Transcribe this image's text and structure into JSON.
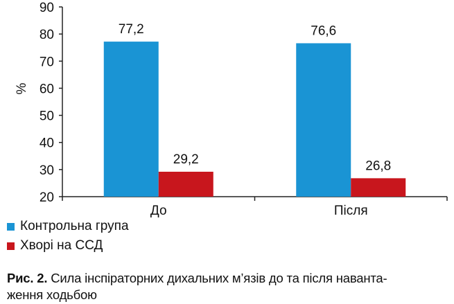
{
  "chart_data": {
    "type": "bar",
    "categories": [
      "До",
      "Після"
    ],
    "series": [
      {
        "name": "Контрольна група",
        "values": [
          77.2,
          76.6
        ],
        "labels": [
          "77,2",
          "76,6"
        ],
        "color": "#1a94d4"
      },
      {
        "name": "Хворі на ССД",
        "values": [
          29.2,
          26.8
        ],
        "labels": [
          "29,2",
          "26,8"
        ],
        "color": "#c8161d"
      }
    ],
    "ylabel": "%",
    "ylim": [
      20,
      90
    ],
    "yticks": [
      "20",
      "30",
      "40",
      "50",
      "60",
      "70",
      "80",
      "90"
    ],
    "grid": false,
    "legend": "bottom-left"
  },
  "caption": {
    "fig": "Рис. 2.",
    "text_line1": "Сила інспіраторних дихальних м’язів до та після наванта-",
    "text_line2": "ження ходьбою"
  }
}
